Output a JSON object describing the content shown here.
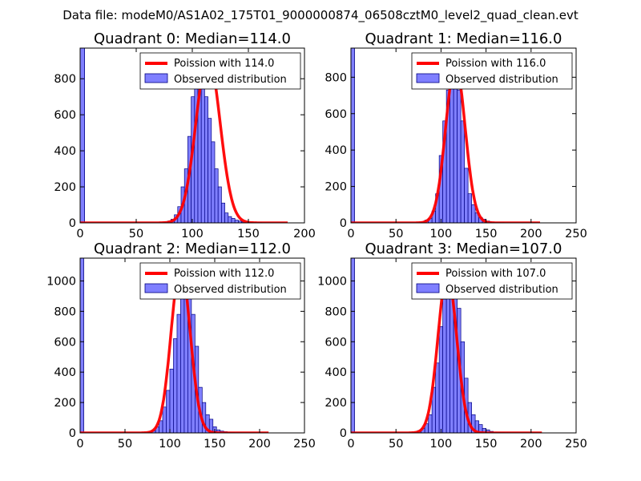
{
  "figure": {
    "suptitle": "Data file: modeM0/AS1A02_175T01_9000000874_06508cztM0_level2_quad_clean.evt",
    "bar_color": "#7f7fff",
    "bar_edge_color": "#000080",
    "fit_color": "#ff0000",
    "observed_label": "Observed distribution"
  },
  "chart_data": [
    {
      "type": "bar",
      "title": "Quadrant 0: Median=114.0",
      "poisson_label": "Poission with 114.0",
      "mu": 114.0,
      "xlim": [
        0,
        200
      ],
      "ylim": [
        0,
        970
      ],
      "xticks": [
        0,
        50,
        100,
        150,
        200
      ],
      "yticks": [
        0,
        200,
        400,
        600,
        800
      ],
      "edge_bar": {
        "x": 0,
        "width": 4,
        "value": 970
      },
      "bin_width": 3,
      "bins_start": 75,
      "values": [
        5,
        10,
        20,
        45,
        90,
        200,
        300,
        480,
        700,
        770,
        800,
        820,
        700,
        580,
        450,
        300,
        200,
        110,
        55,
        35,
        25,
        15,
        10,
        5,
        5,
        3,
        2,
        2,
        2,
        1,
        1,
        1,
        0,
        0,
        0,
        0,
        0
      ],
      "fit_xmax": 185,
      "fit_peak": 930,
      "legend_loc": "upper right"
    },
    {
      "type": "bar",
      "title": "Quadrant 1: Median=116.0",
      "poisson_label": "Poission with 116.0",
      "mu": 116.0,
      "xlim": [
        0,
        250
      ],
      "ylim": [
        0,
        960
      ],
      "xticks": [
        0,
        50,
        100,
        150,
        200,
        250
      ],
      "yticks": [
        0,
        200,
        400,
        600,
        800
      ],
      "edge_bar": {
        "x": 0,
        "width": 4,
        "value": 960
      },
      "bin_width": 4,
      "bins_start": 78,
      "values": [
        5,
        15,
        25,
        65,
        160,
        370,
        560,
        730,
        760,
        790,
        730,
        560,
        300,
        160,
        100,
        55,
        30,
        20,
        10,
        5,
        3,
        2,
        2,
        1,
        1,
        1,
        1,
        0,
        0,
        0,
        0,
        0,
        0
      ],
      "fit_xmax": 210,
      "fit_peak": 870,
      "legend_loc": "upper right"
    },
    {
      "type": "bar",
      "title": "Quadrant 2: Median=112.0",
      "poisson_label": "Poission with 112.0",
      "mu": 112.0,
      "xlim": [
        0,
        250
      ],
      "ylim": [
        0,
        1150
      ],
      "xticks": [
        0,
        50,
        100,
        150,
        200,
        250
      ],
      "yticks": [
        0,
        200,
        400,
        600,
        800,
        1000
      ],
      "edge_bar": {
        "x": 0,
        "width": 4,
        "value": 1150
      },
      "bin_width": 4,
      "bins_start": 76,
      "values": [
        5,
        15,
        40,
        80,
        170,
        280,
        420,
        620,
        780,
        930,
        1000,
        900,
        780,
        570,
        300,
        200,
        120,
        90,
        40,
        20,
        12,
        8,
        5,
        3,
        2,
        2,
        1,
        1,
        1,
        0,
        0,
        0,
        0,
        0
      ],
      "fit_xmax": 210,
      "fit_peak": 1100,
      "legend_loc": "upper right"
    },
    {
      "type": "bar",
      "title": "Quadrant 3: Median=107.0",
      "poisson_label": "Poission with 107.0",
      "mu": 107.0,
      "xlim": [
        0,
        250
      ],
      "ylim": [
        0,
        1150
      ],
      "xticks": [
        0,
        50,
        100,
        150,
        200,
        250
      ],
      "yticks": [
        0,
        200,
        400,
        600,
        800,
        1000
      ],
      "edge_bar": {
        "x": 0,
        "width": 4,
        "value": 1150
      },
      "bin_width": 4,
      "bins_start": 70,
      "values": [
        5,
        15,
        30,
        60,
        120,
        300,
        460,
        700,
        880,
        1010,
        1030,
        990,
        820,
        600,
        360,
        200,
        120,
        80,
        55,
        30,
        20,
        10,
        6,
        4,
        3,
        2,
        2,
        1,
        1,
        1,
        0,
        0,
        0,
        0,
        0,
        0
      ],
      "fit_xmax": 212,
      "fit_peak": 1050,
      "legend_loc": "upper right"
    }
  ]
}
